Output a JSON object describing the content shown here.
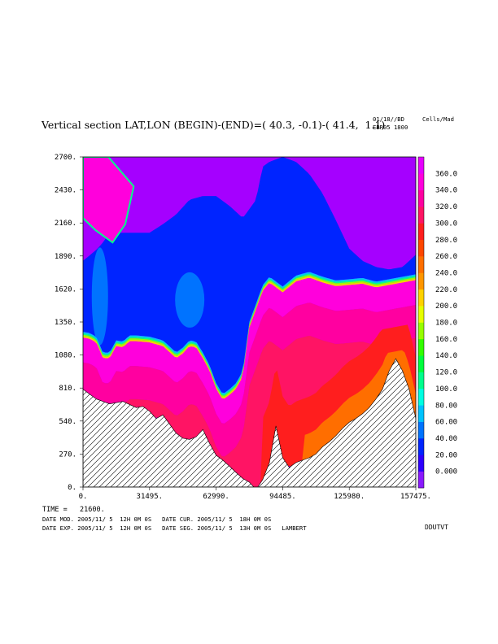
{
  "header": {
    "title": "Vertical section LAT,LON (BEGIN)-(END)=( 40.3, -0.1)-( 41.4,  1.1)",
    "date_line": "01/18//BD",
    "run_line": "EBR05 1800",
    "units": "Cells/Mad"
  },
  "footer": {
    "time_line": "TIME =   21600.",
    "mod_line": "DATE MOD. 2005/11/ 5  12H 0M 0S   DATE CUR. 2005/11/ 5  18H 0M 0S",
    "exp_line": "DATE EXP. 2005/11/ 5  12H 0M 0S   DATE SEG. 2005/11/ 5  13H 0M 0S   LAMBERT",
    "code": "DDUTVT"
  },
  "chart_data": {
    "type": "heatmap",
    "title": "",
    "xlabel": "",
    "ylabel": "",
    "xlim": [
      0,
      157475
    ],
    "ylim": [
      0,
      2700
    ],
    "x_ticks": [
      "0.",
      "31495.",
      "62990.",
      "94485.",
      "125980.",
      "157475."
    ],
    "y_ticks": [
      "0.",
      "270.",
      "540.",
      "810.",
      "1080.",
      "1350.",
      "1620.",
      "1890.",
      "2160.",
      "2430.",
      "2700."
    ],
    "colorbar": {
      "levels": [
        "0.000",
        "20.00",
        "40.00",
        "60.00",
        "80.00",
        "100.0",
        "120.0",
        "140.0",
        "160.0",
        "180.0",
        "200.0",
        "220.0",
        "240.0",
        "260.0",
        "280.0",
        "300.0",
        "320.0",
        "340.0",
        "360.0"
      ],
      "colors": [
        "#8a19ff",
        "#2d00ff",
        "#0024ff",
        "#0073ff",
        "#00c3ff",
        "#00ffe1",
        "#00ff8c",
        "#00ff3c",
        "#32ff00",
        "#96ff00",
        "#e6ff00",
        "#ffd200",
        "#ff9600",
        "#ff6e00",
        "#ff4600",
        "#ff1e1e",
        "#ff1464",
        "#ff00a0",
        "#ff00dc",
        "#e600ff"
      ]
    },
    "terrain": {
      "x": [
        0,
        6300,
        12600,
        18900,
        25200,
        28300,
        31500,
        34600,
        37800,
        44100,
        47200,
        50400,
        53500,
        56700,
        59800,
        63000,
        66100,
        69300,
        72400,
        75600,
        78700,
        81900,
        85000,
        88200,
        91300,
        94500,
        97600,
        100800,
        103900,
        107100,
        110200,
        113400,
        116500,
        119700,
        122800,
        126000,
        129100,
        132300,
        135400,
        138600,
        141700,
        144900,
        148000,
        151200,
        154300,
        157475
      ],
      "y": [
        800,
        720,
        680,
        700,
        650,
        660,
        620,
        560,
        590,
        440,
        400,
        390,
        410,
        470,
        360,
        260,
        220,
        170,
        120,
        70,
        40,
        -20,
        60,
        200,
        500,
        240,
        160,
        200,
        220,
        240,
        270,
        330,
        370,
        420,
        480,
        530,
        560,
        600,
        650,
        720,
        800,
        950,
        1050,
        950,
        800,
        560
      ]
    },
    "blue_boundary": {
      "x": [
        0,
        3100,
        6300,
        9400,
        12600,
        15700,
        18900,
        22000,
        25200,
        31500,
        37800,
        44100,
        47200,
        50400,
        53500,
        56700,
        59800,
        63000,
        66100,
        69300,
        72400,
        75600,
        78700,
        81900,
        85000,
        88200,
        94500,
        100800,
        107100,
        113400,
        119700,
        126000,
        132300,
        138600,
        144900,
        151200,
        157475
      ],
      "y": [
        1270,
        1260,
        1230,
        1100,
        1100,
        1200,
        1190,
        1240,
        1240,
        1230,
        1200,
        1100,
        1140,
        1200,
        1190,
        1100,
        1000,
        850,
        760,
        800,
        850,
        950,
        1350,
        1500,
        1650,
        1720,
        1640,
        1730,
        1760,
        1720,
        1690,
        1700,
        1710,
        1680,
        1700,
        1720,
        1740
      ]
    },
    "upper_magenta_boundary": {
      "x": [
        0,
        6300,
        9400,
        12600,
        18900,
        25200,
        31500,
        37800,
        44100,
        50400,
        56700,
        63000,
        69300,
        75600,
        81900,
        85000,
        88200,
        94500,
        100800,
        107100,
        113400,
        119700,
        126000,
        132300,
        138600,
        144900,
        151200,
        157475
      ],
      "y": [
        1850,
        1940,
        2000,
        2080,
        2080,
        2080,
        2080,
        2150,
        2230,
        2350,
        2380,
        2380,
        2300,
        2200,
        2350,
        2620,
        2660,
        2700,
        2660,
        2560,
        2400,
        2180,
        1950,
        1850,
        1800,
        1780,
        1800,
        1900
      ]
    }
  }
}
